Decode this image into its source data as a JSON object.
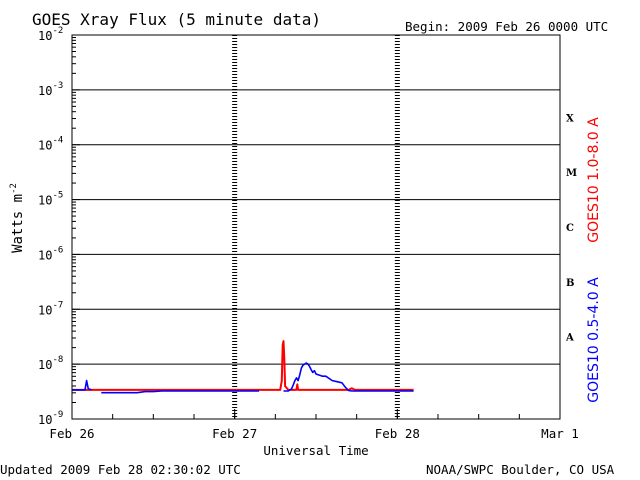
{
  "chart_data": {
    "type": "line",
    "title": "GOES Xray Flux (5 minute data)",
    "begin_label": "Begin:  2009 Feb 26 0000 UTC",
    "updated_label": "Updated 2009 Feb 28 02:30:02 UTC",
    "credit_label": "NOAA/SWPC Boulder, CO USA",
    "xlabel": "Universal Time",
    "ylabel": "Watts m",
    "ylabel_exponent": "-2",
    "y_scale": "log",
    "ylim": [
      1e-09,
      0.01
    ],
    "y_ticks": [
      {
        "exp": -2,
        "base": "10",
        "sup": "-2"
      },
      {
        "exp": -3,
        "base": "10",
        "sup": "-3"
      },
      {
        "exp": -4,
        "base": "10",
        "sup": "-4"
      },
      {
        "exp": -5,
        "base": "10",
        "sup": "-5"
      },
      {
        "exp": -6,
        "base": "10",
        "sup": "-6"
      },
      {
        "exp": -7,
        "base": "10",
        "sup": "-7"
      },
      {
        "exp": -8,
        "base": "10",
        "sup": "-8"
      },
      {
        "exp": -9,
        "base": "10",
        "sup": "-9"
      }
    ],
    "x_unit": "days since 2009 Feb 26 0000 UTC",
    "xlim": [
      0,
      3
    ],
    "x_ticks": [
      {
        "x": 0,
        "label": "Feb 26"
      },
      {
        "x": 1,
        "label": "Feb 27"
      },
      {
        "x": 2,
        "label": "Feb 28"
      },
      {
        "x": 3,
        "label": "Mar 1"
      }
    ],
    "grid": true,
    "flare_classes": [
      {
        "label": "X",
        "exp": -3.5
      },
      {
        "label": "M",
        "exp": -4.5
      },
      {
        "label": "C",
        "exp": -5.5
      },
      {
        "label": "B",
        "exp": -6.5
      },
      {
        "label": "A",
        "exp": -7.5
      }
    ],
    "series": [
      {
        "name": "GOES10 1.0-8.0 A",
        "color": "#ff0000",
        "segments": [
          [
            [
              0.0,
              -8.47
            ],
            [
              0.4,
              -8.47
            ],
            [
              0.8,
              -8.47
            ],
            [
              1.15,
              -8.47
            ],
            [
              1.28,
              -8.47
            ],
            [
              1.29,
              -8.3
            ],
            [
              1.295,
              -7.65
            ],
            [
              1.3,
              -7.58
            ],
            [
              1.305,
              -7.9
            ],
            [
              1.31,
              -8.4
            ],
            [
              1.33,
              -8.47
            ],
            [
              1.38,
              -8.47
            ],
            [
              1.385,
              -8.37
            ],
            [
              1.39,
              -8.47
            ],
            [
              1.55,
              -8.47
            ],
            [
              1.6,
              -8.47
            ],
            [
              1.7,
              -8.47
            ],
            [
              1.72,
              -8.44
            ],
            [
              1.74,
              -8.47
            ],
            [
              2.1,
              -8.47
            ]
          ]
        ]
      },
      {
        "name": "GOES10 0.5-4.0 A",
        "color": "#0000ff",
        "segments": [
          [
            [
              0.0,
              -8.47
            ],
            [
              0.08,
              -8.47
            ],
            [
              0.09,
              -8.3
            ],
            [
              0.1,
              -8.45
            ],
            [
              0.12,
              -8.47
            ]
          ],
          [
            [
              0.18,
              -8.52
            ],
            [
              0.4,
              -8.52
            ],
            [
              0.45,
              -8.5
            ],
            [
              0.5,
              -8.5
            ],
            [
              0.55,
              -8.49
            ],
            [
              0.6,
              -8.49
            ],
            [
              0.7,
              -8.49
            ],
            [
              0.9,
              -8.49
            ],
            [
              1.15,
              -8.49
            ]
          ],
          [
            [
              1.3,
              -8.49
            ],
            [
              1.33,
              -8.49
            ],
            [
              1.35,
              -8.45
            ],
            [
              1.36,
              -8.38
            ],
            [
              1.37,
              -8.3
            ],
            [
              1.38,
              -8.25
            ],
            [
              1.39,
              -8.3
            ],
            [
              1.4,
              -8.2
            ],
            [
              1.41,
              -8.07
            ],
            [
              1.42,
              -8.02
            ],
            [
              1.43,
              -8.0
            ],
            [
              1.44,
              -7.98
            ],
            [
              1.45,
              -8.0
            ],
            [
              1.46,
              -8.04
            ],
            [
              1.47,
              -8.1
            ],
            [
              1.48,
              -8.15
            ],
            [
              1.49,
              -8.12
            ],
            [
              1.5,
              -8.18
            ],
            [
              1.52,
              -8.2
            ],
            [
              1.54,
              -8.22
            ],
            [
              1.56,
              -8.22
            ],
            [
              1.6,
              -8.3
            ],
            [
              1.63,
              -8.32
            ],
            [
              1.66,
              -8.34
            ],
            [
              1.68,
              -8.42
            ],
            [
              1.7,
              -8.48
            ],
            [
              1.72,
              -8.49
            ],
            [
              1.8,
              -8.49
            ],
            [
              2.0,
              -8.49
            ],
            [
              2.1,
              -8.49
            ]
          ]
        ]
      }
    ]
  }
}
